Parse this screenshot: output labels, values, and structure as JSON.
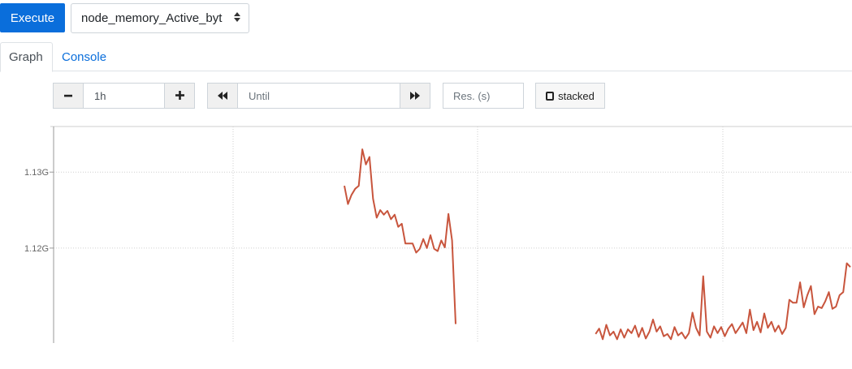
{
  "toolbar": {
    "execute_label": "Execute",
    "metric_value": "node_memory_Active_byt"
  },
  "tabs": [
    {
      "label": "Graph",
      "active": true
    },
    {
      "label": "Console",
      "active": false
    }
  ],
  "controls": {
    "range_value": "1h",
    "until_placeholder": "Until",
    "resolution_placeholder": "Res. (s)",
    "stacked_label": "stacked"
  },
  "icons": {
    "minus": "minus-icon",
    "plus": "plus-icon",
    "back": "backward-icon",
    "forward": "forward-icon",
    "caret": "sort-caret-icon"
  },
  "colors": {
    "primary": "#0a6edb",
    "series": "#c8553d",
    "grid": "#cccccc"
  },
  "chart_data": {
    "type": "line",
    "y_ticks": [
      "1.13G",
      "1.12G"
    ],
    "grid": true,
    "series": [
      {
        "segments": [
          [
            [
              0,
              1.1282
            ],
            [
              1,
              1.1258
            ],
            [
              2,
              1.127
            ],
            [
              3,
              1.1278
            ],
            [
              4,
              1.1282
            ],
            [
              5,
              1.133
            ],
            [
              6,
              1.131
            ],
            [
              7,
              1.132
            ],
            [
              8,
              1.1265
            ],
            [
              9,
              1.124
            ],
            [
              10,
              1.125
            ],
            [
              11,
              1.1244
            ],
            [
              12,
              1.1249
            ],
            [
              13,
              1.1238
            ],
            [
              14,
              1.1244
            ],
            [
              15,
              1.1228
            ],
            [
              16,
              1.1232
            ],
            [
              17,
              1.1206
            ],
            [
              18,
              1.1206
            ],
            [
              19,
              1.1206
            ],
            [
              20,
              1.1194
            ],
            [
              21,
              1.1199
            ],
            [
              22,
              1.1212
            ],
            [
              23,
              1.12
            ],
            [
              24,
              1.1217
            ],
            [
              25,
              1.1199
            ],
            [
              26,
              1.1196
            ],
            [
              27,
              1.121
            ],
            [
              28,
              1.1201
            ],
            [
              29,
              1.1245
            ],
            [
              30,
              1.121
            ],
            [
              31,
              1.11
            ]
          ],
          [
            [
              70,
              1.1087
            ],
            [
              71,
              1.1094
            ],
            [
              72,
              1.108
            ],
            [
              73,
              1.1099
            ],
            [
              74,
              1.1085
            ],
            [
              75,
              1.109
            ],
            [
              76,
              1.108
            ],
            [
              77,
              1.1093
            ],
            [
              78,
              1.1082
            ],
            [
              79,
              1.1093
            ],
            [
              80,
              1.1088
            ],
            [
              81,
              1.1098
            ],
            [
              82,
              1.1083
            ],
            [
              83,
              1.1095
            ],
            [
              84,
              1.1081
            ],
            [
              85,
              1.109
            ],
            [
              86,
              1.1106
            ],
            [
              87,
              1.109
            ],
            [
              88,
              1.1097
            ],
            [
              89,
              1.1084
            ],
            [
              90,
              1.1087
            ],
            [
              91,
              1.108
            ],
            [
              92,
              1.1096
            ],
            [
              93,
              1.1085
            ],
            [
              94,
              1.1089
            ],
            [
              95,
              1.1081
            ],
            [
              96,
              1.1088
            ],
            [
              97,
              1.1115
            ],
            [
              98,
              1.1095
            ],
            [
              99,
              1.1085
            ],
            [
              100,
              1.1163
            ],
            [
              101,
              1.109
            ],
            [
              102,
              1.1082
            ],
            [
              103,
              1.1097
            ],
            [
              104,
              1.1088
            ],
            [
              105,
              1.1096
            ],
            [
              106,
              1.1084
            ],
            [
              107,
              1.1094
            ],
            [
              108,
              1.11
            ],
            [
              109,
              1.1088
            ],
            [
              110,
              1.1095
            ],
            [
              111,
              1.1102
            ],
            [
              112,
              1.1088
            ],
            [
              113,
              1.1119
            ],
            [
              114,
              1.1092
            ],
            [
              115,
              1.1103
            ],
            [
              116,
              1.1089
            ],
            [
              117,
              1.1114
            ],
            [
              118,
              1.1095
            ],
            [
              119,
              1.1103
            ],
            [
              120,
              1.109
            ],
            [
              121,
              1.1098
            ],
            [
              122,
              1.1087
            ],
            [
              123,
              1.1095
            ],
            [
              124,
              1.1132
            ],
            [
              125,
              1.1128
            ],
            [
              126,
              1.1128
            ],
            [
              127,
              1.1155
            ],
            [
              128,
              1.1122
            ],
            [
              129,
              1.1138
            ],
            [
              130,
              1.115
            ],
            [
              131,
              1.1113
            ],
            [
              132,
              1.1123
            ],
            [
              133,
              1.1121
            ],
            [
              134,
              1.113
            ],
            [
              135,
              1.1142
            ],
            [
              136,
              1.112
            ],
            [
              137,
              1.1123
            ],
            [
              138,
              1.1138
            ],
            [
              139,
              1.1142
            ],
            [
              140,
              1.118
            ],
            [
              141,
              1.1175
            ]
          ]
        ]
      }
    ]
  }
}
